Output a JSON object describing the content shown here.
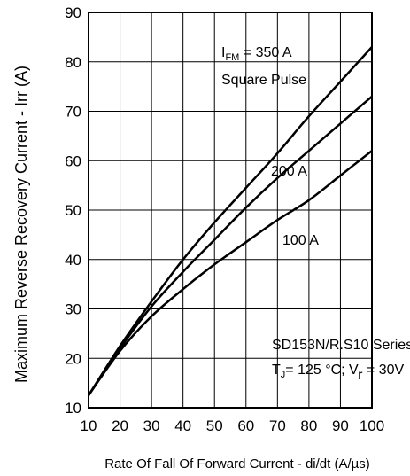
{
  "chart_data": {
    "type": "line",
    "xlabel": "Rate Of Fall Of Forward Current - di/dt (A/µs)",
    "ylabel": "Maximum Reverse Recovery Current - Irr (A)",
    "xlim": [
      10,
      100
    ],
    "ylim": [
      10,
      90
    ],
    "xticks": [
      "10",
      "20",
      "30",
      "40",
      "50",
      "60",
      "70",
      "80",
      "90",
      "100"
    ],
    "yticks": [
      "10",
      "20",
      "30",
      "40",
      "50",
      "60",
      "70",
      "80",
      "90"
    ],
    "grid": true,
    "series": [
      {
        "name": "350 A",
        "x": [
          10,
          20,
          30,
          40,
          50,
          60,
          70,
          80,
          90,
          100
        ],
        "y": [
          12.5,
          22.5,
          31.5,
          40,
          47.5,
          54.5,
          61.5,
          69,
          76,
          83
        ]
      },
      {
        "name": "200 A",
        "x": [
          10,
          20,
          30,
          40,
          50,
          60,
          70,
          80,
          90,
          100
        ],
        "y": [
          12.5,
          22,
          30.5,
          37.5,
          44,
          50.5,
          56.5,
          62,
          67.5,
          73
        ]
      },
      {
        "name": "100 A",
        "x": [
          10,
          20,
          30,
          40,
          50,
          60,
          70,
          80,
          90,
          100
        ],
        "y": [
          12.5,
          21.5,
          28.5,
          34,
          39,
          43.5,
          48,
          52,
          57,
          62
        ]
      }
    ],
    "annotations": {
      "ifm_prefix": "I",
      "ifm_sub": "FM",
      "ifm_value": " = 350 A",
      "pulse": "Square Pulse",
      "label_200": "200 A",
      "label_100": "100 A",
      "series_name": "SD153N/R.S10 Series",
      "cond_t": "T",
      "cond_t_sub": "J",
      "cond_temp": "= 125 °C; V",
      "cond_v_sub": "r",
      "cond_v": " = 30V"
    }
  }
}
